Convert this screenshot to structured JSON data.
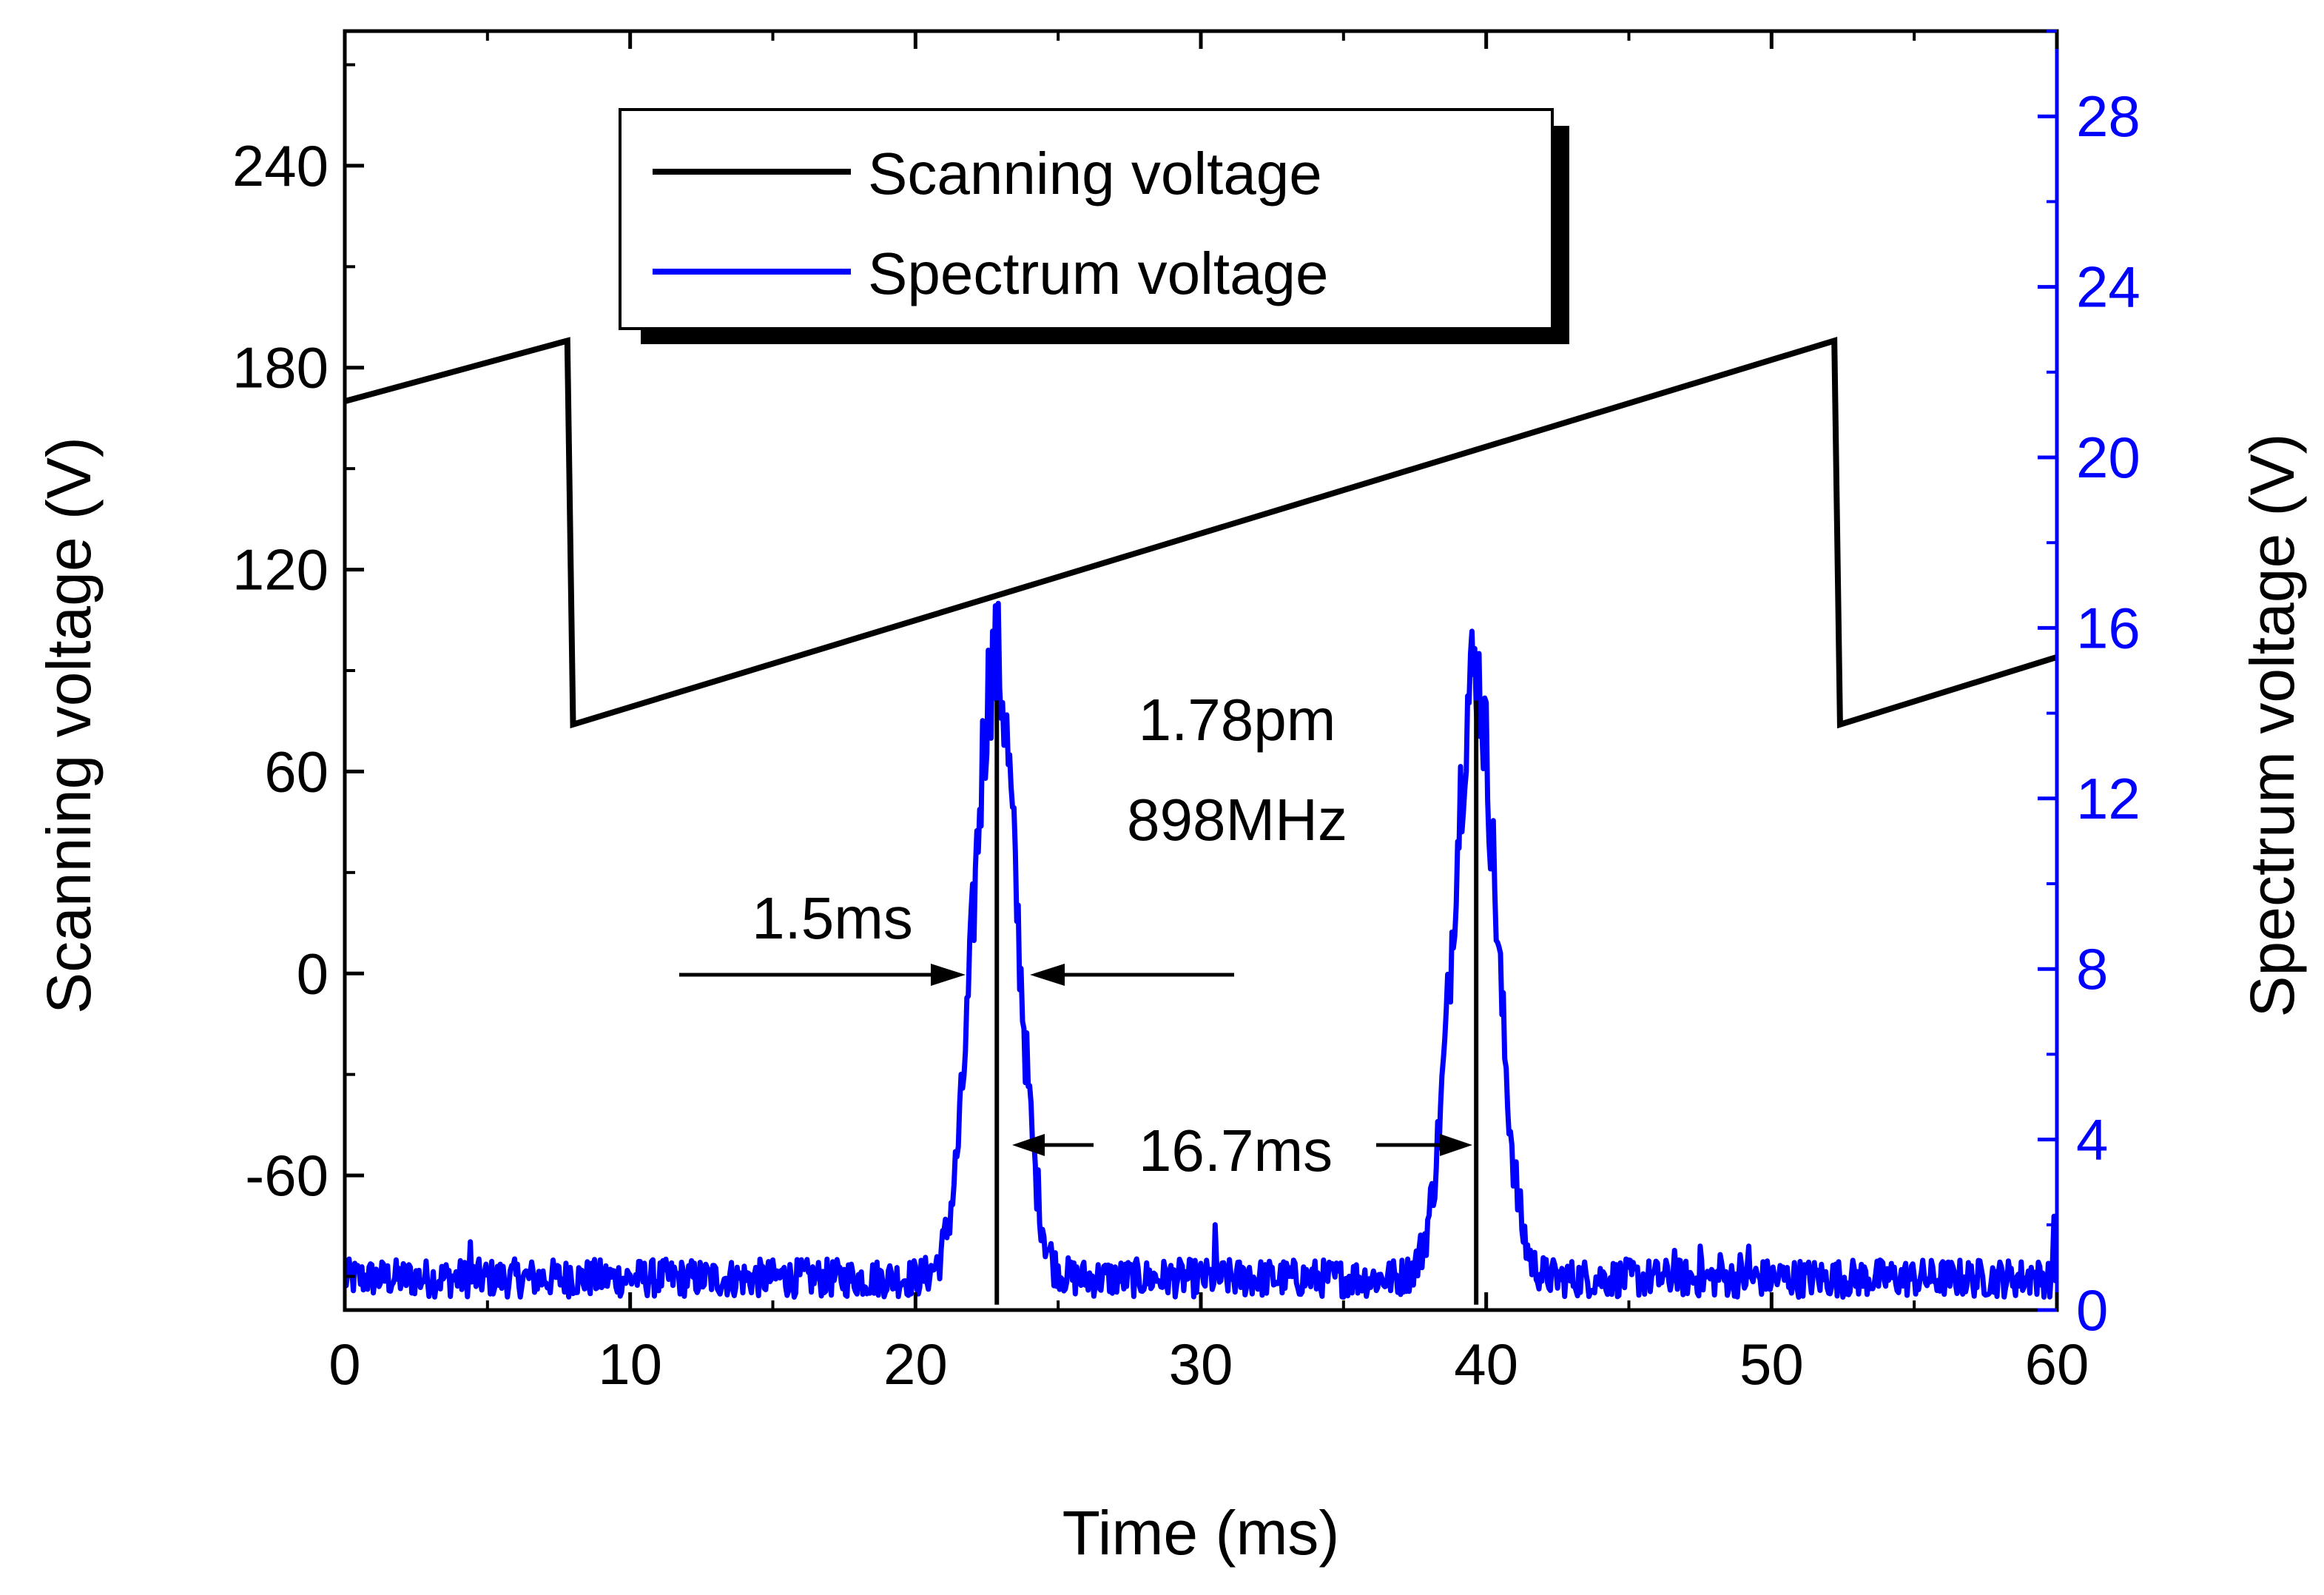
{
  "chart_data": {
    "type": "line",
    "xlabel": "Time (ms)",
    "ylabel_left": "Scanning voltage (V)",
    "ylabel_right": "Spectrum voltage (V)",
    "xlim": [
      0,
      60
    ],
    "ylim_left": [
      -100,
      280
    ],
    "ylim_right": [
      0,
      30
    ],
    "x_ticks": [
      0,
      10,
      20,
      30,
      40,
      50,
      60
    ],
    "y_left_ticks": [
      -60,
      0,
      60,
      120,
      180,
      240
    ],
    "y_right_ticks": [
      0,
      4,
      8,
      12,
      16,
      20,
      24,
      28
    ],
    "x_tick_labels": [
      "0",
      "10",
      "20",
      "30",
      "40",
      "50",
      "60"
    ],
    "y_left_tick_labels": [
      "-60",
      "0",
      "60",
      "120",
      "180",
      "240"
    ],
    "y_right_tick_labels": [
      "0",
      "4",
      "8",
      "12",
      "16",
      "20",
      "24",
      "28"
    ],
    "grid": false,
    "legend_position": "top-center",
    "colors": {
      "scanning": "#000000",
      "spectrum": "#0000ff",
      "right_axis": "#0000ff"
    },
    "series": [
      {
        "name": "Scanning voltage",
        "axis": "left",
        "x": [
          0,
          7.8,
          8.0,
          52.2,
          52.4,
          60
        ],
        "y": [
          170,
          188,
          74,
          188,
          74,
          94
        ]
      },
      {
        "name": "Spectrum voltage",
        "axis": "right",
        "baseline": 0.75,
        "peaks": [
          {
            "center": 22.8,
            "height": 14.5,
            "width": 0.75
          },
          {
            "center": 39.6,
            "height": 14.2,
            "width": 0.75
          }
        ],
        "spikes": [
          {
            "x": 2.3,
            "y": 1.0
          },
          {
            "x": 4.4,
            "y": 1.6
          },
          {
            "x": 7.9,
            "y": 1.0
          },
          {
            "x": 10.4,
            "y": 1.0
          },
          {
            "x": 15.4,
            "y": 1.0
          },
          {
            "x": 29.6,
            "y": 1.0
          },
          {
            "x": 30.5,
            "y": 2.0
          },
          {
            "x": 31.7,
            "y": 1.0
          },
          {
            "x": 46.6,
            "y": 1.4
          },
          {
            "x": 47.5,
            "y": 1.5
          },
          {
            "x": 48.2,
            "y": 1.3
          },
          {
            "x": 48.9,
            "y": 1.3
          },
          {
            "x": 49.2,
            "y": 1.5
          },
          {
            "x": 54.7,
            "y": 1.0
          },
          {
            "x": 56.3,
            "y": 1.0
          },
          {
            "x": 58.0,
            "y": 1.0
          },
          {
            "x": 59.1,
            "y": 1.0
          },
          {
            "x": 59.9,
            "y": 2.2
          }
        ]
      }
    ],
    "annotations": {
      "resolution_line1": "1.78pm",
      "resolution_line2": "898MHz",
      "width_label": "1.5ms",
      "period_label": "16.7ms",
      "peak_markers": [
        {
          "x": 22.85,
          "y_top": 14.3
        },
        {
          "x": 39.65,
          "y_top": 14.3
        }
      ]
    }
  }
}
